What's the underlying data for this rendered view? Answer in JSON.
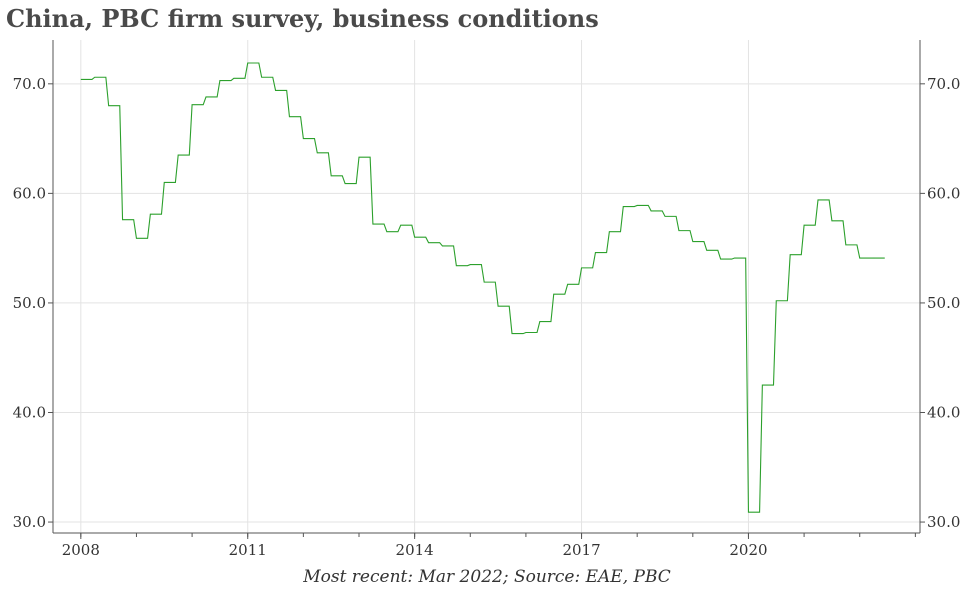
{
  "chart_data": {
    "type": "line",
    "title": "China, PBC firm survey, business conditions",
    "source": "Most recent: Mar 2022; Source: EAE, PBC",
    "xlabel": "",
    "ylabel": "",
    "x_ticks": [
      "2008",
      "2011",
      "2014",
      "2017",
      "2020"
    ],
    "y_ticks": [
      "30.0",
      "40.0",
      "50.0",
      "60.0",
      "70.0"
    ],
    "ylim": [
      29,
      74
    ],
    "xlim": [
      "2007-07",
      "2023-02"
    ],
    "grid": true,
    "line_style": "step",
    "series": [
      {
        "color": "#2ca02c",
        "x": [
          "2008-01",
          "2008-04",
          "2008-07",
          "2008-10",
          "2009-01",
          "2009-04",
          "2009-07",
          "2009-10",
          "2010-01",
          "2010-04",
          "2010-07",
          "2010-10",
          "2011-01",
          "2011-04",
          "2011-07",
          "2011-10",
          "2012-01",
          "2012-04",
          "2012-07",
          "2012-10",
          "2013-01",
          "2013-04",
          "2013-07",
          "2013-10",
          "2014-01",
          "2014-04",
          "2014-07",
          "2014-10",
          "2015-01",
          "2015-04",
          "2015-07",
          "2015-10",
          "2016-01",
          "2016-04",
          "2016-07",
          "2016-10",
          "2017-01",
          "2017-04",
          "2017-07",
          "2017-10",
          "2018-01",
          "2018-04",
          "2018-07",
          "2018-10",
          "2019-01",
          "2019-04",
          "2019-07",
          "2019-10",
          "2020-01",
          "2020-04",
          "2020-07",
          "2020-10",
          "2021-01",
          "2021-04",
          "2021-07",
          "2021-10",
          "2022-01",
          "2022-04"
        ],
        "values": [
          70.4,
          70.6,
          68.0,
          57.6,
          55.9,
          58.1,
          61.0,
          63.5,
          68.1,
          68.8,
          70.3,
          70.5,
          71.9,
          70.6,
          69.4,
          67.0,
          65.0,
          63.7,
          61.6,
          60.9,
          63.3,
          57.2,
          56.5,
          57.1,
          56.0,
          55.5,
          55.2,
          53.4,
          53.5,
          51.9,
          49.7,
          47.2,
          47.3,
          48.3,
          50.8,
          51.7,
          53.2,
          54.6,
          56.5,
          58.8,
          58.9,
          58.4,
          57.9,
          56.6,
          55.6,
          54.8,
          54.0,
          54.1,
          30.9,
          42.5,
          50.2,
          54.4,
          57.1,
          59.4,
          57.5,
          55.3,
          54.1,
          54.1
        ]
      }
    ]
  }
}
